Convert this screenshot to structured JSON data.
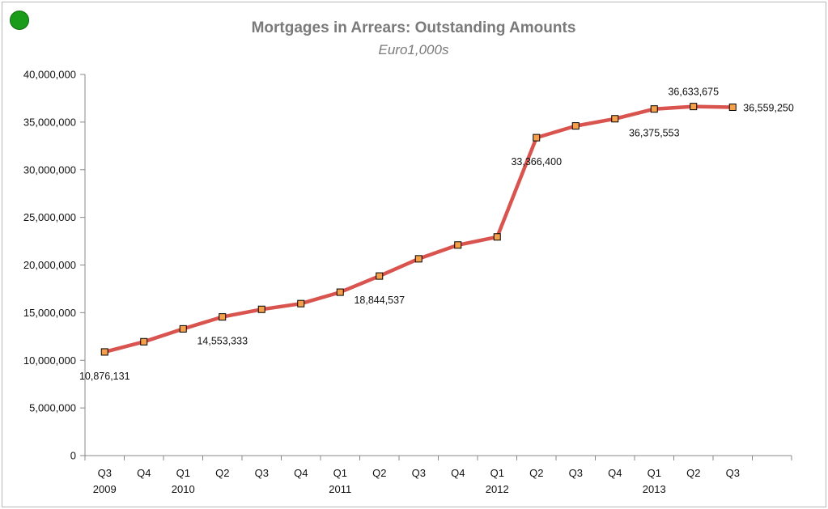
{
  "indicator": {
    "color": "#1a9b1a"
  },
  "chart_data": {
    "type": "line",
    "title": "Mortgages in Arrears: Outstanding Amounts",
    "subtitle": "Euro1,000s",
    "xlabel": "",
    "ylabel": "",
    "ylim": [
      0,
      40000000
    ],
    "yticks": [
      "0",
      "5,000,000",
      "10,000,000",
      "15,000,000",
      "20,000,000",
      "25,000,000",
      "30,000,000",
      "35,000,000",
      "40,000,000"
    ],
    "grid": false,
    "legend": "none",
    "categories": [
      {
        "q": "Q3",
        "year": "2009"
      },
      {
        "q": "Q4",
        "year": ""
      },
      {
        "q": "Q1",
        "year": "2010"
      },
      {
        "q": "Q2",
        "year": ""
      },
      {
        "q": "Q3",
        "year": ""
      },
      {
        "q": "Q4",
        "year": ""
      },
      {
        "q": "Q1",
        "year": "2011"
      },
      {
        "q": "Q2",
        "year": ""
      },
      {
        "q": "Q3",
        "year": ""
      },
      {
        "q": "Q4",
        "year": ""
      },
      {
        "q": "Q1",
        "year": "2012"
      },
      {
        "q": "Q2",
        "year": ""
      },
      {
        "q": "Q3",
        "year": ""
      },
      {
        "q": "Q4",
        "year": ""
      },
      {
        "q": "Q1",
        "year": "2013"
      },
      {
        "q": "Q2",
        "year": ""
      },
      {
        "q": "Q3",
        "year": ""
      }
    ],
    "series": [
      {
        "color": "#d9534f",
        "marker_color": "#f5a04a",
        "values": [
          10876131,
          11950000,
          13300000,
          14553333,
          15350000,
          15950000,
          17150000,
          18844537,
          20650000,
          22100000,
          22950000,
          33366400,
          34600000,
          35350000,
          36375553,
          36633675,
          36559250
        ]
      }
    ],
    "data_labels": [
      {
        "index": 0,
        "text": "10,876,131",
        "pos": "below"
      },
      {
        "index": 3,
        "text": "14,553,333",
        "pos": "below"
      },
      {
        "index": 7,
        "text": "18,844,537",
        "pos": "below"
      },
      {
        "index": 11,
        "text": "33,366,400",
        "pos": "below"
      },
      {
        "index": 14,
        "text": "36,375,553",
        "pos": "below"
      },
      {
        "index": 15,
        "text": "36,633,675",
        "pos": "above"
      },
      {
        "index": 16,
        "text": "36,559,250",
        "pos": "right"
      }
    ]
  }
}
